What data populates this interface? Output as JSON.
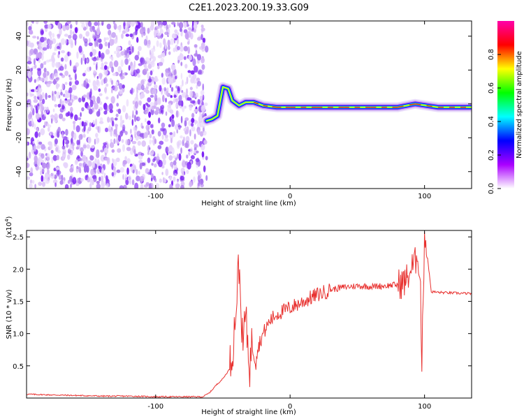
{
  "figure": {
    "title": "C2E1.2023.200.19.33.G09"
  },
  "chart_data": [
    {
      "type": "heatmap",
      "title": "",
      "xlabel": "Height of straight line (km)",
      "ylabel": "Frequency (Hz)",
      "xlim": [
        -196,
        135
      ],
      "ylim": [
        -50,
        49
      ],
      "xticks": [
        -100,
        0,
        100
      ],
      "yticks": [
        -40,
        -20,
        0,
        20,
        40
      ],
      "noise_region_x": [
        -196,
        -62
      ],
      "signal_track": [
        {
          "x": -62,
          "y": -10
        },
        {
          "x": -58,
          "y": -9
        },
        {
          "x": -54,
          "y": -7
        },
        {
          "x": -50,
          "y": 10
        },
        {
          "x": -46,
          "y": 9
        },
        {
          "x": -43,
          "y": 2
        },
        {
          "x": -38,
          "y": -1
        },
        {
          "x": -33,
          "y": 1
        },
        {
          "x": -27,
          "y": 1
        },
        {
          "x": -20,
          "y": -1
        },
        {
          "x": -10,
          "y": -2
        },
        {
          "x": 0,
          "y": -2
        },
        {
          "x": 20,
          "y": -2
        },
        {
          "x": 40,
          "y": -2
        },
        {
          "x": 60,
          "y": -2
        },
        {
          "x": 80,
          "y": -2
        },
        {
          "x": 93,
          "y": 0
        },
        {
          "x": 110,
          "y": -2
        },
        {
          "x": 135,
          "y": -2
        }
      ],
      "colorbar": {
        "label": "Normalized spectral amplitude",
        "range": [
          0,
          1
        ],
        "ticks": [
          0.0,
          0.2,
          0.4,
          0.6,
          0.8
        ],
        "tick_labels": [
          "0.0",
          "0.2",
          "0.4",
          "0.6",
          "0.8"
        ],
        "colormap": [
          "#ffffff",
          "#aa00ff",
          "#0000ff",
          "#00ffff",
          "#00ff00",
          "#ffff00",
          "#ff0000",
          "#ff00aa"
        ]
      }
    },
    {
      "type": "line",
      "title": "",
      "xlabel": "Height of straight line (km)",
      "ylabel": "SNR (10 * v/v)",
      "y_multiplier": "(x10",
      "y_multiplier_exp": "4",
      "y_multiplier_close": ")",
      "xlim": [
        -196,
        135
      ],
      "ylim": [
        0,
        2.6
      ],
      "xticks": [
        -100,
        0,
        100
      ],
      "yticks": [
        0.5,
        1.0,
        1.5,
        2.0,
        2.5
      ],
      "ytick_labels": [
        "0.5",
        "1.0",
        "1.5",
        "2.0",
        "2.5"
      ],
      "series": [
        {
          "color": "#e8312f",
          "x": [
            -196,
            -180,
            -160,
            -140,
            -120,
            -100,
            -80,
            -65,
            -60,
            -55,
            -50,
            -45,
            -42,
            -40,
            -38,
            -36,
            -35,
            -34,
            -32,
            -30,
            -28,
            -25,
            -22,
            -20,
            -15,
            -10,
            -5,
            0,
            10,
            20,
            30,
            40,
            50,
            60,
            70,
            80,
            85,
            88,
            90,
            93,
            95,
            97,
            98,
            100,
            105,
            110,
            120,
            135
          ],
          "y": [
            0.06,
            0.05,
            0.04,
            0.03,
            0.03,
            0.02,
            0.02,
            0.02,
            0.08,
            0.2,
            0.3,
            0.45,
            0.9,
            1.5,
            2.08,
            1.2,
            0.6,
            1.3,
            1.0,
            0.5,
            0.9,
            0.7,
            0.9,
            1.0,
            1.2,
            1.3,
            1.35,
            1.4,
            1.5,
            1.6,
            1.68,
            1.72,
            1.74,
            1.73,
            1.74,
            1.76,
            1.8,
            1.9,
            2.0,
            2.1,
            2.3,
            1.7,
            0.52,
            2.6,
            1.65,
            1.64,
            1.63,
            1.62
          ]
        }
      ]
    }
  ]
}
